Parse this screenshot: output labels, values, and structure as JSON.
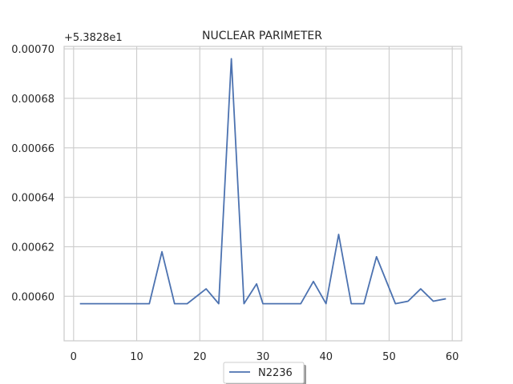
{
  "chart_data": {
    "type": "line",
    "title": "NUCLEAR PARIMETER",
    "xlabel": "",
    "ylabel": "",
    "y_offset_label": "+5.3828e1",
    "xlim": [
      -1.5,
      61.5
    ],
    "ylim": [
      0.000582,
      0.000701
    ],
    "x_ticks": [
      0,
      10,
      20,
      30,
      40,
      50,
      60
    ],
    "x_tick_labels": [
      "0",
      "10",
      "20",
      "30",
      "40",
      "50",
      "60"
    ],
    "y_ticks": [
      0.0006,
      0.00062,
      0.00064,
      0.00066,
      0.00068,
      0.0007
    ],
    "y_tick_labels": [
      "0.00060",
      "0.00062",
      "0.00064",
      "0.00066",
      "0.00068",
      "0.00070"
    ],
    "grid": true,
    "legend_position": "bottom-center",
    "colors": {
      "series": "#4c72b0",
      "grid": "#cccccc",
      "text": "#262626"
    },
    "series": [
      {
        "name": "N2236",
        "x": [
          1,
          12,
          14,
          16,
          18,
          21,
          23,
          25,
          27,
          29,
          30,
          32,
          34,
          36,
          38,
          40,
          42,
          44,
          46,
          48,
          51,
          53,
          55,
          57,
          59
        ],
        "values": [
          0.000597,
          0.000597,
          0.000618,
          0.000597,
          0.000597,
          0.000603,
          0.000597,
          0.000696,
          0.000597,
          0.000605,
          0.000597,
          0.000597,
          0.000597,
          0.000597,
          0.000606,
          0.000597,
          0.000625,
          0.000597,
          0.000597,
          0.000616,
          0.000597,
          0.000598,
          0.000603,
          0.000598,
          0.000599
        ]
      }
    ]
  }
}
